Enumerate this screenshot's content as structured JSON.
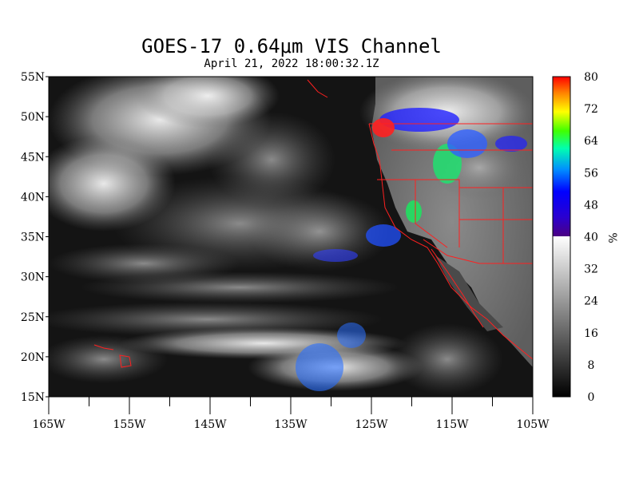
{
  "title": "GOES-17  0.64μm VIS Channel",
  "subtitle": "April 21,  2022 18:00:32.1Z",
  "map": {
    "lat_labels": [
      "55N",
      "50N",
      "45N",
      "40N",
      "35N",
      "30N",
      "25N",
      "20N",
      "15N"
    ],
    "lat_values": [
      55,
      50,
      45,
      40,
      35,
      30,
      25,
      20,
      15
    ],
    "lon_labels": [
      "165W",
      "155W",
      "145W",
      "135W",
      "125W",
      "115W",
      "105W"
    ],
    "lon_values": [
      -165,
      -155,
      -145,
      -135,
      -125,
      -115,
      -105
    ],
    "lon_range": [
      -165,
      -105
    ],
    "lat_range": [
      15,
      55
    ],
    "border_color": "#ff2020",
    "background_color": "#101010"
  },
  "colorbar": {
    "unit": "%",
    "tick_labels": [
      "0",
      "8",
      "16",
      "24",
      "32",
      "40",
      "48",
      "56",
      "64",
      "72",
      "80"
    ],
    "tick_values": [
      0,
      8,
      16,
      24,
      32,
      40,
      48,
      56,
      64,
      72,
      80
    ],
    "range": [
      0,
      80
    ],
    "grayscale_max": 40,
    "color_stops": [
      "#000000",
      "#ffffff",
      "#5a00a0",
      "#0000ff",
      "#00aaff",
      "#00ff80",
      "#80ff00",
      "#ffff00",
      "#ff8000",
      "#ff0000"
    ]
  }
}
